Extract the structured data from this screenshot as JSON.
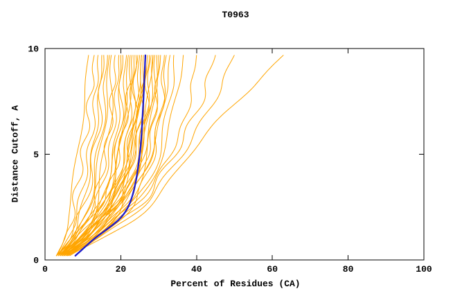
{
  "chart_data": {
    "type": "line",
    "title": "T0963",
    "xlabel": "Percent of Residues (CA)",
    "ylabel": "Distance Cutoff, A",
    "xlim": [
      0,
      100
    ],
    "ylim": [
      0,
      10
    ],
    "grid": false,
    "legend": null,
    "x_ticks": [
      {
        "v": 0,
        "label": "0"
      },
      {
        "v": 20,
        "label": "20"
      },
      {
        "v": 40,
        "label": "40"
      },
      {
        "v": 60,
        "label": "60"
      },
      {
        "v": 80,
        "label": "80"
      },
      {
        "v": 100,
        "label": "100"
      }
    ],
    "y_ticks": [
      {
        "v": 0,
        "label": "0"
      },
      {
        "v": 5,
        "label": "5"
      },
      {
        "v": 10,
        "label": "10"
      }
    ],
    "colors": {
      "models": "#ffa500",
      "highlight": "#1a1acd",
      "frame": "#000000",
      "text": "#000000"
    },
    "y_samples": [
      0.2,
      1,
      2,
      3,
      5,
      7,
      9.7
    ],
    "model_curves_x": [
      [
        3,
        5,
        6,
        7,
        8.5,
        10,
        11.5
      ],
      [
        3,
        5.5,
        7,
        8,
        10,
        11.5,
        13
      ],
      [
        3.5,
        6,
        8,
        9.5,
        11.5,
        13,
        14
      ],
      [
        4,
        7,
        9,
        10.5,
        12.5,
        14,
        15
      ],
      [
        3,
        6.5,
        9,
        11,
        13,
        14.5,
        15.5
      ],
      [
        4,
        8,
        10.5,
        12,
        14,
        15.5,
        16.5
      ],
      [
        3.5,
        7,
        10,
        12.5,
        14.5,
        16,
        17
      ],
      [
        5,
        9,
        12,
        14,
        16,
        17,
        17.5
      ],
      [
        4,
        8.5,
        11.5,
        13.5,
        16,
        17.5,
        18.5
      ],
      [
        3,
        7,
        11,
        14,
        17,
        18.5,
        19.5
      ],
      [
        4.5,
        9.5,
        13,
        15.5,
        18,
        19.5,
        20
      ],
      [
        5,
        10,
        14,
        16.5,
        19,
        20,
        20.5
      ],
      [
        3.5,
        8,
        12,
        15,
        18.5,
        20.5,
        21.5
      ],
      [
        4,
        9,
        13.5,
        16.5,
        19.5,
        21,
        22
      ],
      [
        5.5,
        11,
        15,
        17.5,
        20,
        21.5,
        22.5
      ],
      [
        3,
        7.5,
        12,
        16,
        19.5,
        21.5,
        23
      ],
      [
        4.5,
        10,
        14.5,
        17.5,
        21,
        22.5,
        23.5
      ],
      [
        5,
        11.5,
        16,
        19,
        22,
        23.5,
        24
      ],
      [
        3.5,
        8.5,
        13,
        17,
        21,
        23,
        24.5
      ],
      [
        4,
        10.5,
        15.5,
        18.5,
        22,
        24,
        25
      ],
      [
        6,
        12,
        17,
        20,
        23,
        24.5,
        25.5
      ],
      [
        4.5,
        9.5,
        14.5,
        18.5,
        22.5,
        24.5,
        26
      ],
      [
        5,
        11,
        16,
        20,
        23.5,
        25.5,
        26.5
      ],
      [
        3.5,
        8,
        13.5,
        18,
        23,
        25.5,
        27
      ],
      [
        6,
        13,
        18,
        21.5,
        25,
        26.5,
        27.5
      ],
      [
        4,
        10,
        15.5,
        20,
        24.5,
        26.5,
        28
      ],
      [
        5.5,
        12,
        17.5,
        21.5,
        25.5,
        27.5,
        28.5
      ],
      [
        4.5,
        11,
        16.5,
        21,
        25.5,
        27.5,
        29
      ],
      [
        6,
        13.5,
        19,
        23,
        27,
        28.5,
        29.5
      ],
      [
        5,
        12,
        18,
        22.5,
        27,
        29,
        30
      ],
      [
        3.5,
        9,
        15,
        20.5,
        26,
        29,
        30.5
      ],
      [
        6.5,
        14,
        20,
        24.5,
        28.5,
        30.5,
        31.5
      ],
      [
        5,
        11.5,
        17.5,
        22.5,
        28,
        30.5,
        32
      ],
      [
        4,
        10,
        16.5,
        22,
        28,
        31,
        33
      ],
      [
        6,
        13,
        19.5,
        24.5,
        30,
        32.5,
        34
      ],
      [
        5,
        12.5,
        19,
        25,
        31,
        34,
        36.5
      ],
      [
        5,
        12,
        20,
        26,
        33,
        37.5,
        40
      ],
      [
        6,
        13,
        21,
        27,
        34,
        40,
        45
      ],
      [
        5.5,
        14,
        22,
        28,
        36,
        43,
        50
      ],
      [
        6,
        15,
        24,
        30,
        38,
        48,
        63
      ],
      [
        4,
        9,
        14,
        18,
        22,
        24,
        25.5
      ],
      [
        5,
        10.5,
        15,
        19,
        23,
        25,
        26.5
      ],
      [
        4.5,
        10,
        15.5,
        20.5,
        25,
        27,
        28.5
      ]
    ],
    "highlight_curve_x": [
      8,
      13,
      20,
      23,
      25,
      25.8,
      26.5
    ]
  }
}
